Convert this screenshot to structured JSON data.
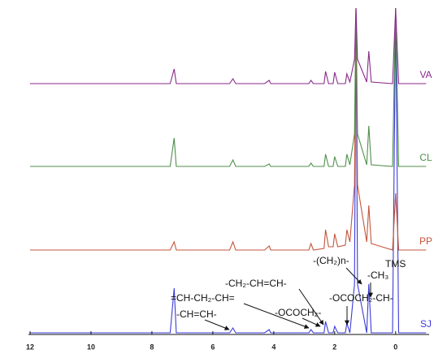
{
  "chart_data": {
    "type": "line",
    "x": [
      12,
      7.4,
      7.27,
      7.2,
      5.45,
      5.34,
      5.25,
      4.3,
      4.15,
      4.1,
      2.85,
      2.78,
      2.7,
      2.35,
      2.3,
      2.2,
      2.05,
      2.0,
      1.9,
      1.65,
      1.6,
      1.5,
      1.35,
      1.3,
      1.25,
      0.95,
      0.88,
      0.8,
      0.1,
      0,
      -0.1,
      -1
    ],
    "xlim": [
      12,
      -1.1
    ],
    "xticks": [
      12,
      10,
      8,
      6,
      4,
      2,
      0
    ],
    "series": [
      {
        "name": "SJ",
        "color": "#3b3bd8",
        "values": [
          0,
          0,
          55,
          0,
          0,
          6,
          0,
          0,
          4,
          0,
          0,
          4,
          0,
          0,
          14,
          0,
          0,
          8,
          0,
          0,
          12,
          0,
          60,
          400,
          60,
          0,
          60,
          0,
          0,
          400,
          0,
          0
        ]
      },
      {
        "name": "PP",
        "color": "#c4553c",
        "values": [
          0,
          0,
          10,
          0,
          0,
          10,
          0,
          0,
          5,
          0,
          0,
          8,
          0,
          2,
          25,
          4,
          4,
          20,
          4,
          6,
          25,
          10,
          80,
          298,
          80,
          10,
          55,
          8,
          0,
          70,
          0,
          0
        ]
      },
      {
        "name": "CL",
        "color": "#4f8f4a",
        "values": [
          0,
          0,
          35,
          0,
          0,
          8,
          0,
          0,
          3,
          0,
          0,
          4,
          0,
          0,
          15,
          0,
          0,
          12,
          0,
          0,
          15,
          2,
          40,
          195,
          40,
          2,
          50,
          2,
          0,
          195,
          0,
          0
        ]
      },
      {
        "name": "VA",
        "color": "#8a2a8a",
        "values": [
          0,
          0,
          18,
          0,
          0,
          6,
          0,
          0,
          4,
          0,
          0,
          4,
          0,
          0,
          15,
          0,
          0,
          14,
          0,
          0,
          12,
          2,
          30,
          93,
          30,
          2,
          40,
          2,
          0,
          93,
          0,
          0
        ]
      }
    ],
    "annotations": [
      "-CH=CH-",
      "=CH-CH₂-CH=",
      "-CH₂-CH=CH-",
      "-OCOCH₂-",
      "-(CH₂)n-",
      "-CH₃",
      "-OCOCH₂-CH-",
      "TMS"
    ]
  }
}
